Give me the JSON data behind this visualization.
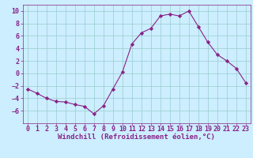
{
  "x": [
    0,
    1,
    2,
    3,
    4,
    5,
    6,
    7,
    8,
    9,
    10,
    11,
    12,
    13,
    14,
    15,
    16,
    17,
    18,
    19,
    20,
    21,
    22,
    23
  ],
  "y": [
    -2.5,
    -3.2,
    -4.0,
    -4.5,
    -4.6,
    -5.0,
    -5.3,
    -6.5,
    -5.2,
    -2.5,
    0.2,
    4.7,
    6.5,
    7.2,
    9.2,
    9.5,
    9.2,
    10.0,
    7.5,
    5.0,
    3.0,
    2.0,
    0.8,
    -1.5
  ],
  "line_color": "#882288",
  "marker": "D",
  "marker_size": 2.2,
  "bg_color": "#cceeff",
  "grid_color": "#99cccc",
  "xlabel": "Windchill (Refroidissement éolien,°C)",
  "xlabel_color": "#882288",
  "xlabel_fontsize": 6.5,
  "tick_color": "#882288",
  "tick_fontsize": 6.0,
  "ylim": [
    -8,
    11
  ],
  "xlim": [
    -0.5,
    23.5
  ],
  "yticks": [
    -6,
    -4,
    -2,
    0,
    2,
    4,
    6,
    8,
    10
  ],
  "xticks": [
    0,
    1,
    2,
    3,
    4,
    5,
    6,
    7,
    8,
    9,
    10,
    11,
    12,
    13,
    14,
    15,
    16,
    17,
    18,
    19,
    20,
    21,
    22,
    23
  ]
}
